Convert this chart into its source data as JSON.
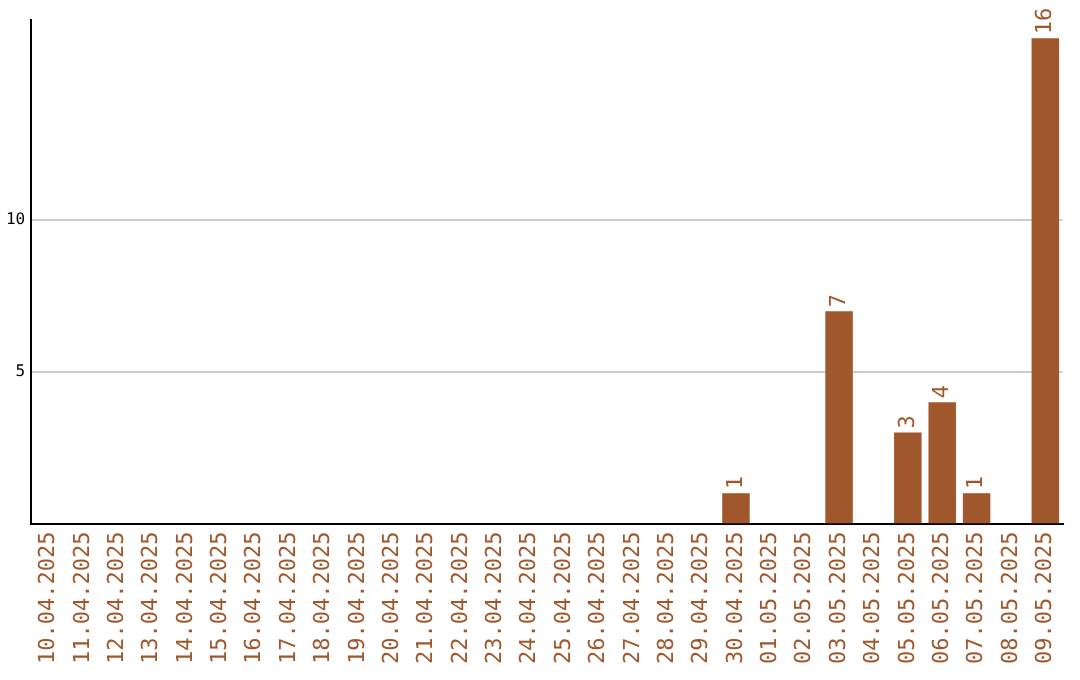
{
  "chart_data": {
    "type": "bar",
    "categories": [
      "10.04.2025",
      "11.04.2025",
      "12.04.2025",
      "13.04.2025",
      "14.04.2025",
      "15.04.2025",
      "16.04.2025",
      "17.04.2025",
      "18.04.2025",
      "19.04.2025",
      "20.04.2025",
      "21.04.2025",
      "22.04.2025",
      "23.04.2025",
      "24.04.2025",
      "25.04.2025",
      "26.04.2025",
      "27.04.2025",
      "28.04.2025",
      "29.04.2025",
      "30.04.2025",
      "01.05.2025",
      "02.05.2025",
      "03.05.2025",
      "04.05.2025",
      "05.05.2025",
      "06.05.2025",
      "07.05.2025",
      "08.05.2025",
      "09.05.2025"
    ],
    "values": [
      0,
      0,
      0,
      0,
      0,
      0,
      0,
      0,
      0,
      0,
      0,
      0,
      0,
      0,
      0,
      0,
      0,
      0,
      0,
      0,
      1,
      0,
      0,
      7,
      0,
      3,
      4,
      1,
      0,
      16
    ],
    "value_labels": [
      null,
      null,
      null,
      null,
      null,
      null,
      null,
      null,
      null,
      null,
      null,
      null,
      null,
      null,
      null,
      null,
      null,
      null,
      null,
      null,
      "1",
      null,
      null,
      "7",
      null,
      "3",
      "4",
      "1",
      null,
      "16"
    ],
    "color": "#a0572b",
    "ylim": [
      0,
      16.6
    ],
    "yticks": [
      5,
      10
    ],
    "grid": "y",
    "legend": false
  }
}
